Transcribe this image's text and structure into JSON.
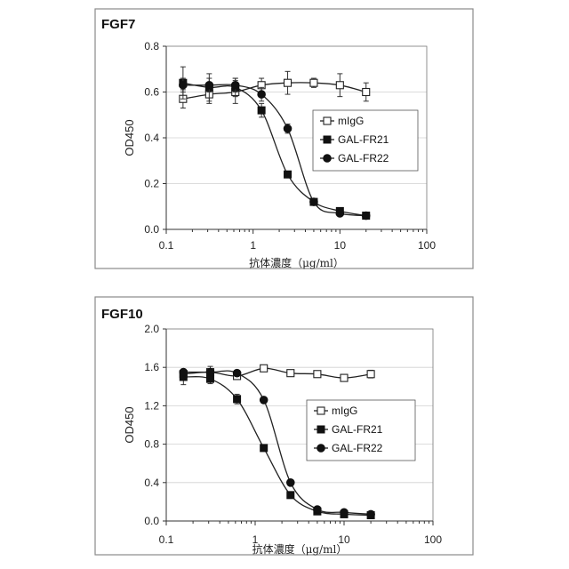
{
  "chart_data": [
    {
      "type": "line",
      "title": "FGF7",
      "xlabel": "抗体濃度（μg/ml）",
      "ylabel": "OD450",
      "xscale": "log",
      "xlim": [
        0.1,
        100
      ],
      "ylim": [
        0.0,
        0.8
      ],
      "x_ticks": [
        "0.1",
        "1",
        "10",
        "100"
      ],
      "y_ticks": [
        "0.0",
        "0.2",
        "0.4",
        "0.6",
        "0.8"
      ],
      "grid": "horizontal",
      "legend_position": "right",
      "series": [
        {
          "name": "mIgG",
          "marker": "open-square",
          "x": [
            0.156,
            0.3125,
            0.625,
            1.25,
            2.5,
            5,
            10,
            20
          ],
          "y": [
            0.57,
            0.59,
            0.6,
            0.63,
            0.64,
            0.64,
            0.63,
            0.6
          ],
          "err": [
            0.04,
            0.04,
            0.05,
            0.03,
            0.05,
            0.02,
            0.05,
            0.04
          ]
        },
        {
          "name": "GAL-FR21",
          "marker": "filled-square",
          "x": [
            0.156,
            0.3125,
            0.625,
            1.25,
            2.5,
            5,
            10,
            20
          ],
          "y": [
            0.64,
            0.62,
            0.62,
            0.52,
            0.24,
            0.12,
            0.08,
            0.06
          ],
          "err": [
            0.07,
            0.06,
            0.04,
            0.03,
            0.01,
            0.01,
            0.01,
            0.01
          ]
        },
        {
          "name": "GAL-FR22",
          "marker": "filled-circle",
          "x": [
            0.156,
            0.3125,
            0.625,
            1.25,
            2.5,
            5,
            10,
            20
          ],
          "y": [
            0.63,
            0.63,
            0.63,
            0.59,
            0.44,
            0.12,
            0.07,
            0.06
          ],
          "err": [
            0.03,
            0.03,
            0.03,
            0.03,
            0.02,
            0.01,
            0.01,
            0.01
          ]
        }
      ]
    },
    {
      "type": "line",
      "title": "FGF10",
      "xlabel": "抗体濃度（μg/ml）",
      "ylabel": "OD450",
      "xscale": "log",
      "xlim": [
        0.1,
        100
      ],
      "ylim": [
        0.0,
        2.0
      ],
      "x_ticks": [
        "0.1",
        "1",
        "10",
        "100"
      ],
      "y_ticks": [
        "0.0",
        "0.4",
        "0.8",
        "1.2",
        "1.6",
        "2.0"
      ],
      "grid": "horizontal",
      "legend_position": "right",
      "series": [
        {
          "name": "mIgG",
          "marker": "open-square",
          "x": [
            0.156,
            0.3125,
            0.625,
            1.25,
            2.5,
            5,
            10,
            20
          ],
          "y": [
            1.53,
            1.55,
            1.51,
            1.59,
            1.54,
            1.53,
            1.49,
            1.53
          ],
          "err": [
            0.05,
            0.06,
            0.03,
            0.02,
            0.02,
            0.02,
            0.03,
            0.04
          ]
        },
        {
          "name": "GAL-FR21",
          "marker": "filled-square",
          "x": [
            0.156,
            0.3125,
            0.625,
            1.25,
            2.5,
            5,
            10,
            20
          ],
          "y": [
            1.5,
            1.48,
            1.27,
            0.76,
            0.27,
            0.1,
            0.07,
            0.06
          ],
          "err": [
            0.08,
            0.05,
            0.05,
            0.02,
            0.02,
            0.01,
            0.01,
            0.01
          ]
        },
        {
          "name": "GAL-FR22",
          "marker": "filled-circle",
          "x": [
            0.156,
            0.3125,
            0.625,
            1.25,
            2.5,
            5,
            10,
            20
          ],
          "y": [
            1.55,
            1.55,
            1.54,
            1.26,
            0.4,
            0.12,
            0.09,
            0.07
          ],
          "err": [
            0.03,
            0.03,
            0.02,
            0.02,
            0.03,
            0.01,
            0.01,
            0.01
          ]
        }
      ]
    }
  ]
}
